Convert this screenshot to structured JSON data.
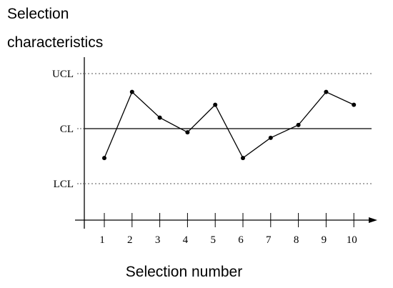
{
  "chart_data": {
    "type": "line",
    "title": "",
    "ylabel_lines": [
      "Selection",
      "characteristics"
    ],
    "xlabel": "Selection number",
    "x": [
      1,
      2,
      3,
      4,
      5,
      6,
      7,
      8,
      9,
      10
    ],
    "values": [
      -0.8,
      1.0,
      0.3,
      -0.1,
      0.65,
      -0.8,
      -0.25,
      0.1,
      1.0,
      0.65
    ],
    "xlim": [
      0.5,
      11
    ],
    "ylim": [
      -1.9,
      2.0
    ],
    "reference_lines": [
      {
        "label": "UCL",
        "value": 1.5,
        "style": "dotted"
      },
      {
        "label": "CL",
        "value": 0,
        "style": "solid"
      },
      {
        "label": "LCL",
        "value": -1.5,
        "style": "dotted"
      }
    ],
    "grid": false
  }
}
